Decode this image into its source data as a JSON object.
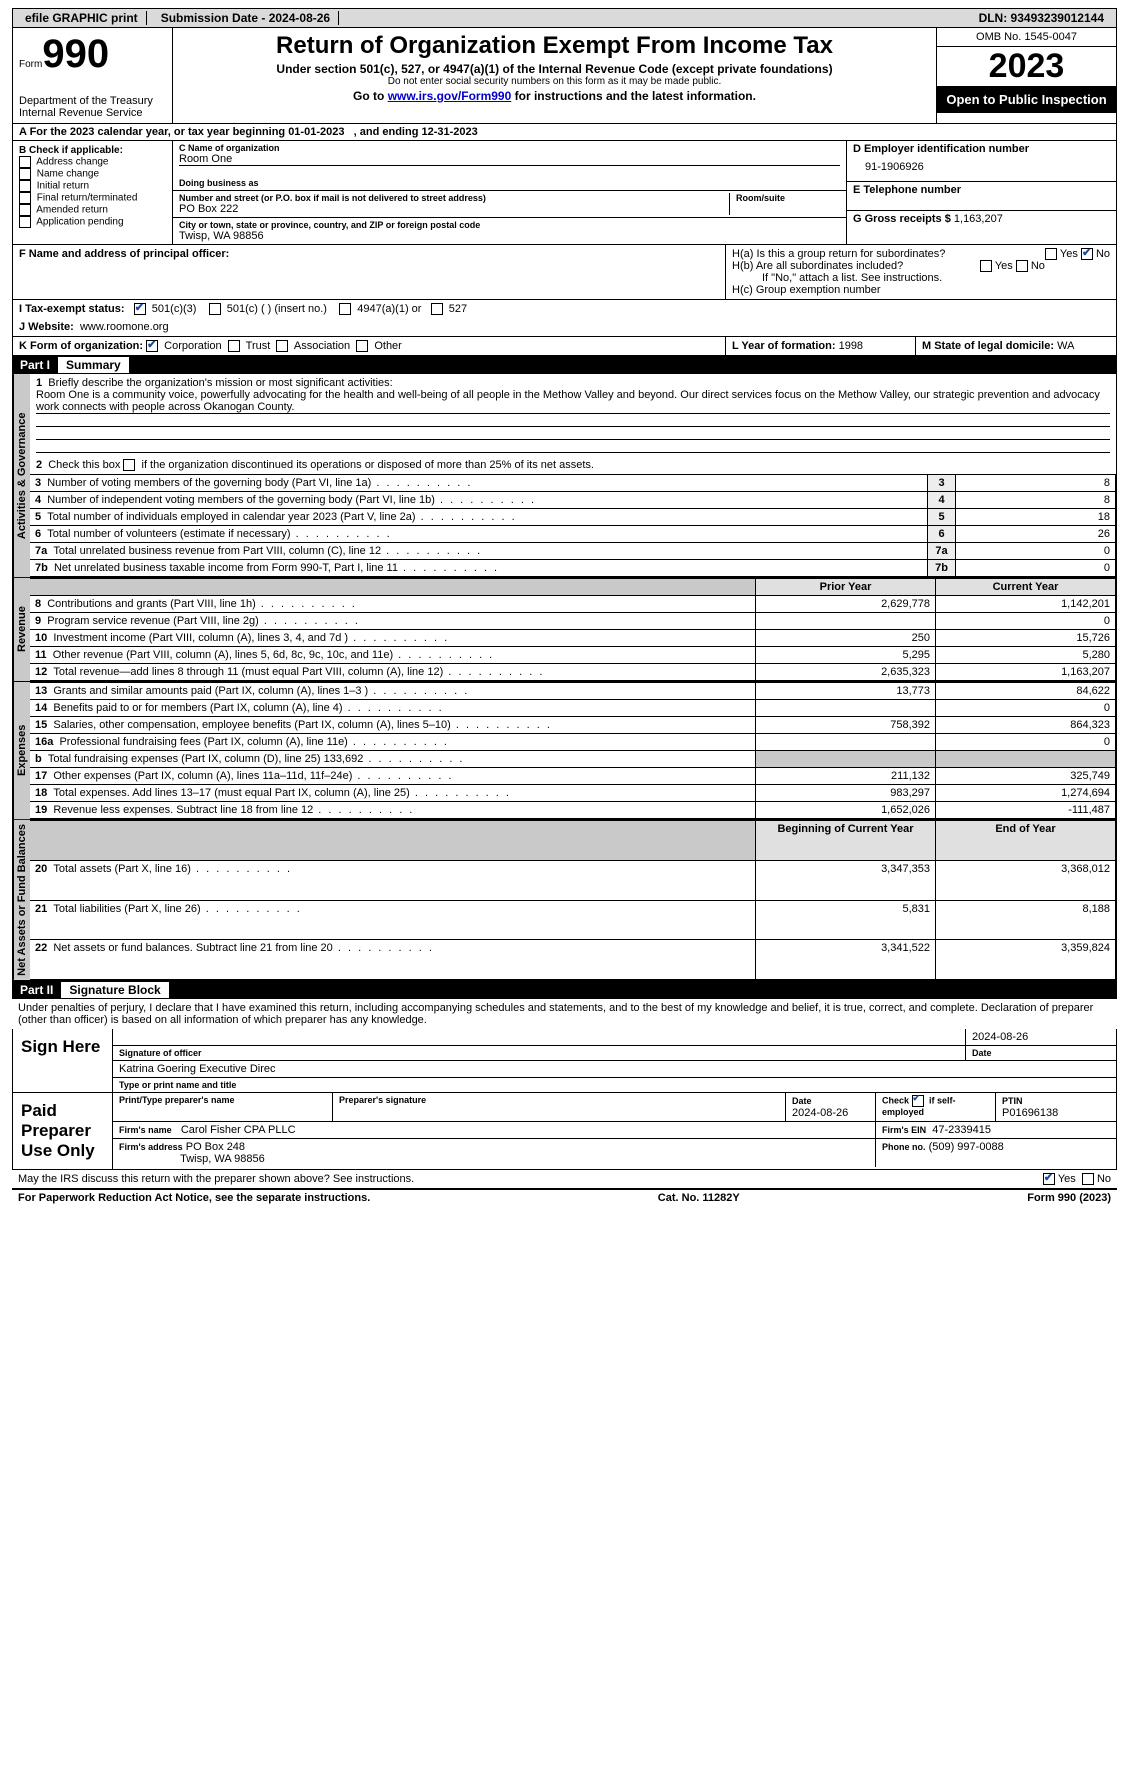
{
  "topbar": {
    "efile": "efile GRAPHIC print",
    "sub_date": "Submission Date - 2024-08-26",
    "dln": "DLN: 93493239012144"
  },
  "header": {
    "form": "990",
    "form_prefix": "Form",
    "dept1": "Department of the Treasury",
    "dept2": "Internal Revenue Service",
    "title": "Return of Organization Exempt From Income Tax",
    "sub1": "Under section 501(c), 527, or 4947(a)(1) of the Internal Revenue Code (except private foundations)",
    "sub2": "Do not enter social security numbers on this form as it may be made public.",
    "sub3_prefix": "Go to ",
    "sub3_link": "www.irs.gov/Form990",
    "sub3_suffix": " for instructions and the latest information.",
    "omb": "OMB No. 1545-0047",
    "year": "2023",
    "otp": "Open to Public Inspection"
  },
  "row_a": {
    "text_a": "A For the 2023 calendar year, or tax year beginning 01-01-2023",
    "text_b": ", and ending 12-31-2023"
  },
  "b": {
    "hdr": "B Check if applicable:",
    "items": [
      "Address change",
      "Name change",
      "Initial return",
      "Final return/terminated",
      "Amended return",
      "Application pending"
    ]
  },
  "c": {
    "name_lbl": "C Name of organization",
    "name": "Room One",
    "dba_lbl": "Doing business as",
    "street_lbl": "Number and street (or P.O. box if mail is not delivered to street address)",
    "street": "PO Box 222",
    "room_lbl": "Room/suite",
    "city_lbl": "City or town, state or province, country, and ZIP or foreign postal code",
    "city": "Twisp, WA  98856"
  },
  "d": {
    "lbl": "D Employer identification number",
    "val": "91-1906926"
  },
  "e": {
    "lbl": "E Telephone number"
  },
  "g": {
    "lbl": "G Gross receipts $",
    "val": "1,163,207"
  },
  "f": {
    "lbl": "F  Name and address of principal officer:"
  },
  "h": {
    "ha": "H(a)  Is this a group return for subordinates?",
    "hb": "H(b)  Are all subordinates included?",
    "hb2": "If \"No,\" attach a list. See instructions.",
    "hc": "H(c)  Group exemption number",
    "yes": "Yes",
    "no": "No"
  },
  "i": {
    "lbl": "I   Tax-exempt status:",
    "opts": [
      "501(c)(3)",
      "501(c) (  ) (insert no.)",
      "4947(a)(1) or",
      "527"
    ]
  },
  "j": {
    "lbl": "J   Website:",
    "val": "www.roomone.org"
  },
  "k": {
    "lbl": "K Form of organization:",
    "opts": [
      "Corporation",
      "Trust",
      "Association",
      "Other"
    ]
  },
  "l": {
    "lbl": "L Year of formation:",
    "val": "1998"
  },
  "m": {
    "lbl": "M State of legal domicile:",
    "val": "WA"
  },
  "part1": {
    "lbl": "Part I",
    "title": "Summary"
  },
  "summary": {
    "side1": "Activities & Governance",
    "q1": "Briefly describe the organization's mission or most significant activities:",
    "q1_text": "Room One is a community voice, powerfully advocating for the health and well-being of all people in the Methow Valley and beyond. Our direct services focus on the Methow Valley, our strategic prevention and advocacy work connects with people across Okanogan County.",
    "q2": "Check this box         if the organization discontinued its operations or disposed of more than 25% of its net assets.",
    "rows_ag": [
      {
        "n": "3",
        "t": "Number of voting members of the governing body (Part VI, line 1a)",
        "v": "8"
      },
      {
        "n": "4",
        "t": "Number of independent voting members of the governing body (Part VI, line 1b)",
        "v": "8"
      },
      {
        "n": "5",
        "t": "Total number of individuals employed in calendar year 2023 (Part V, line 2a)",
        "v": "18"
      },
      {
        "n": "6",
        "t": "Total number of volunteers (estimate if necessary)",
        "v": "26"
      },
      {
        "n": "7a",
        "t": "Total unrelated business revenue from Part VIII, column (C), line 12",
        "v": "0"
      },
      {
        "n": "7b",
        "t": "Net unrelated business taxable income from Form 990-T, Part I, line 11",
        "v": "0"
      }
    ],
    "side2": "Revenue",
    "th_prior": "Prior Year",
    "th_curr": "Current Year",
    "rows_rev": [
      {
        "n": "8",
        "t": "Contributions and grants (Part VIII, line 1h)",
        "p": "2,629,778",
        "c": "1,142,201"
      },
      {
        "n": "9",
        "t": "Program service revenue (Part VIII, line 2g)",
        "p": "",
        "c": "0"
      },
      {
        "n": "10",
        "t": "Investment income (Part VIII, column (A), lines 3, 4, and 7d )",
        "p": "250",
        "c": "15,726"
      },
      {
        "n": "11",
        "t": "Other revenue (Part VIII, column (A), lines 5, 6d, 8c, 9c, 10c, and 11e)",
        "p": "5,295",
        "c": "5,280"
      },
      {
        "n": "12",
        "t": "Total revenue—add lines 8 through 11 (must equal Part VIII, column (A), line 12)",
        "p": "2,635,323",
        "c": "1,163,207"
      }
    ],
    "side3": "Expenses",
    "rows_exp": [
      {
        "n": "13",
        "t": "Grants and similar amounts paid (Part IX, column (A), lines 1–3 )",
        "p": "13,773",
        "c": "84,622"
      },
      {
        "n": "14",
        "t": "Benefits paid to or for members (Part IX, column (A), line 4)",
        "p": "",
        "c": "0"
      },
      {
        "n": "15",
        "t": "Salaries, other compensation, employee benefits (Part IX, column (A), lines 5–10)",
        "p": "758,392",
        "c": "864,323"
      },
      {
        "n": "16a",
        "t": "Professional fundraising fees (Part IX, column (A), line 11e)",
        "p": "",
        "c": "0"
      },
      {
        "n": "b",
        "t": "Total fundraising expenses (Part IX, column (D), line 25) 133,692",
        "p": "shade",
        "c": "shade"
      },
      {
        "n": "17",
        "t": "Other expenses (Part IX, column (A), lines 11a–11d, 11f–24e)",
        "p": "211,132",
        "c": "325,749"
      },
      {
        "n": "18",
        "t": "Total expenses. Add lines 13–17 (must equal Part IX, column (A), line 25)",
        "p": "983,297",
        "c": "1,274,694"
      },
      {
        "n": "19",
        "t": "Revenue less expenses. Subtract line 18 from line 12",
        "p": "1,652,026",
        "c": "-111,487"
      }
    ],
    "side4": "Net Assets or Fund Balances",
    "th_beg": "Beginning of Current Year",
    "th_end": "End of Year",
    "rows_na": [
      {
        "n": "20",
        "t": "Total assets (Part X, line 16)",
        "p": "3,347,353",
        "c": "3,368,012"
      },
      {
        "n": "21",
        "t": "Total liabilities (Part X, line 26)",
        "p": "5,831",
        "c": "8,188"
      },
      {
        "n": "22",
        "t": "Net assets or fund balances. Subtract line 21 from line 20",
        "p": "3,341,522",
        "c": "3,359,824"
      }
    ]
  },
  "part2": {
    "lbl": "Part II",
    "title": "Signature Block"
  },
  "perjury": "Under penalties of perjury, I declare that I have examined this return, including accompanying schedules and statements, and to the best of my knowledge and belief, it is true, correct, and complete. Declaration of preparer (other than officer) is based on all information of which preparer has any knowledge.",
  "sign": {
    "here": "Sign Here",
    "sig_lbl": "Signature of officer",
    "date_lbl": "Date",
    "date": "2024-08-26",
    "name": "Katrina Goering  Executive Direc",
    "name_lbl": "Type or print name and title"
  },
  "paid": {
    "lbl": "Paid Preparer Use Only",
    "p_name_lbl": "Print/Type preparer's name",
    "p_sig_lbl": "Preparer's signature",
    "p_date_lbl": "Date",
    "p_date": "2024-08-26",
    "chk_lbl": "Check          if self-employed",
    "ptin_lbl": "PTIN",
    "ptin": "P01696138",
    "firm_lbl": "Firm's name",
    "firm": "Carol Fisher CPA PLLC",
    "ein_lbl": "Firm's EIN",
    "ein": "47-2339415",
    "addr_lbl": "Firm's address",
    "addr1": "PO Box 248",
    "addr2": "Twisp, WA  98856",
    "phone_lbl": "Phone no.",
    "phone": "(509) 997-0088"
  },
  "discuss": {
    "t": "May the IRS discuss this return with the preparer shown above? See instructions.",
    "yes": "Yes",
    "no": "No"
  },
  "footer": {
    "l": "For Paperwork Reduction Act Notice, see the separate instructions.",
    "c": "Cat. No. 11282Y",
    "r": "Form 990 (2023)"
  }
}
